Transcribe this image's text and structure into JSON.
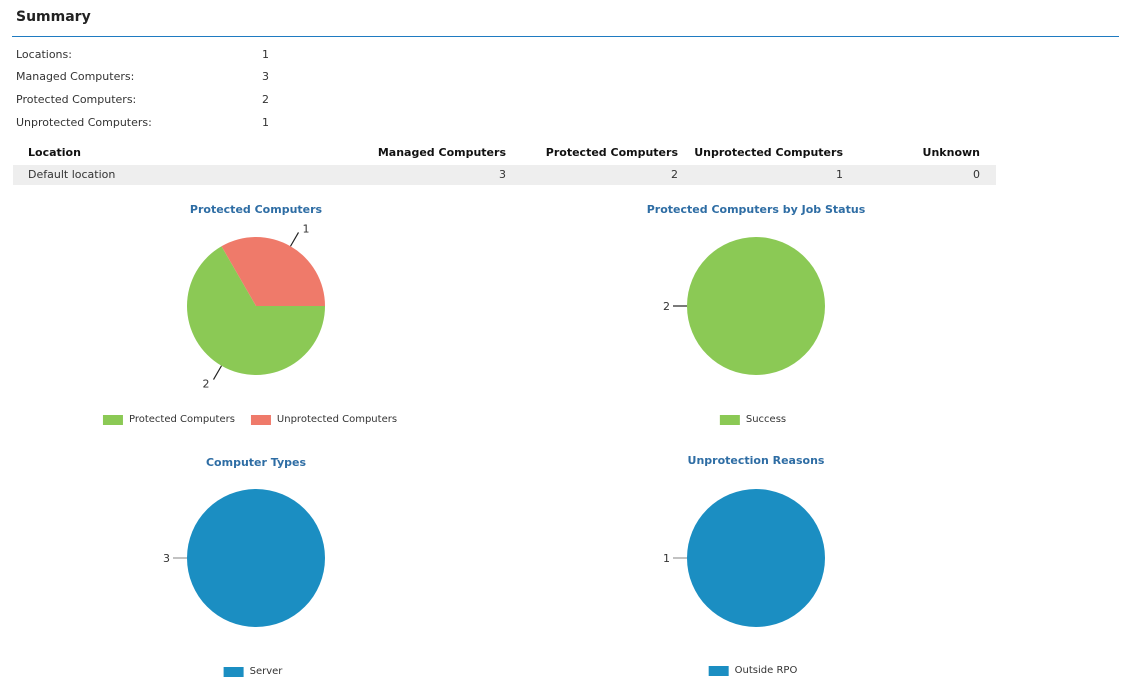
{
  "summary": {
    "title": "Summary",
    "stats": [
      {
        "label": "Locations:",
        "value": "1"
      },
      {
        "label": "Managed Computers:",
        "value": "3"
      },
      {
        "label": "Protected Computers:",
        "value": "2"
      },
      {
        "label": "Unprotected Computers:",
        "value": "1"
      }
    ]
  },
  "table": {
    "headers": [
      "Location",
      "Managed Computers",
      "Protected Computers",
      "Unprotected Computers",
      "Unknown"
    ],
    "rows": [
      [
        "Default location",
        "3",
        "2",
        "1",
        "0"
      ]
    ]
  },
  "colors": {
    "green": "#8bc955",
    "salmon": "#ef7a6a",
    "blue": "#1b8ec2",
    "title_blue": "#2e6da4",
    "rule_blue": "#1f7bc1"
  },
  "chart_data": [
    {
      "type": "pie",
      "title": "Protected Computers",
      "labels": [
        "Protected Computers",
        "Unprotected Computers"
      ],
      "values": [
        2,
        1
      ],
      "colors": [
        "#8bc955",
        "#ef7a6a"
      ]
    },
    {
      "type": "pie",
      "title": "Protected Computers by Job Status",
      "labels": [
        "Success"
      ],
      "values": [
        2
      ],
      "colors": [
        "#8bc955"
      ]
    },
    {
      "type": "pie",
      "title": "Computer Types",
      "labels": [
        "Server"
      ],
      "values": [
        3
      ],
      "colors": [
        "#1b8ec2"
      ]
    },
    {
      "type": "pie",
      "title": "Unprotection Reasons",
      "labels": [
        "Outside RPO"
      ],
      "values": [
        1
      ],
      "colors": [
        "#1b8ec2"
      ]
    }
  ]
}
